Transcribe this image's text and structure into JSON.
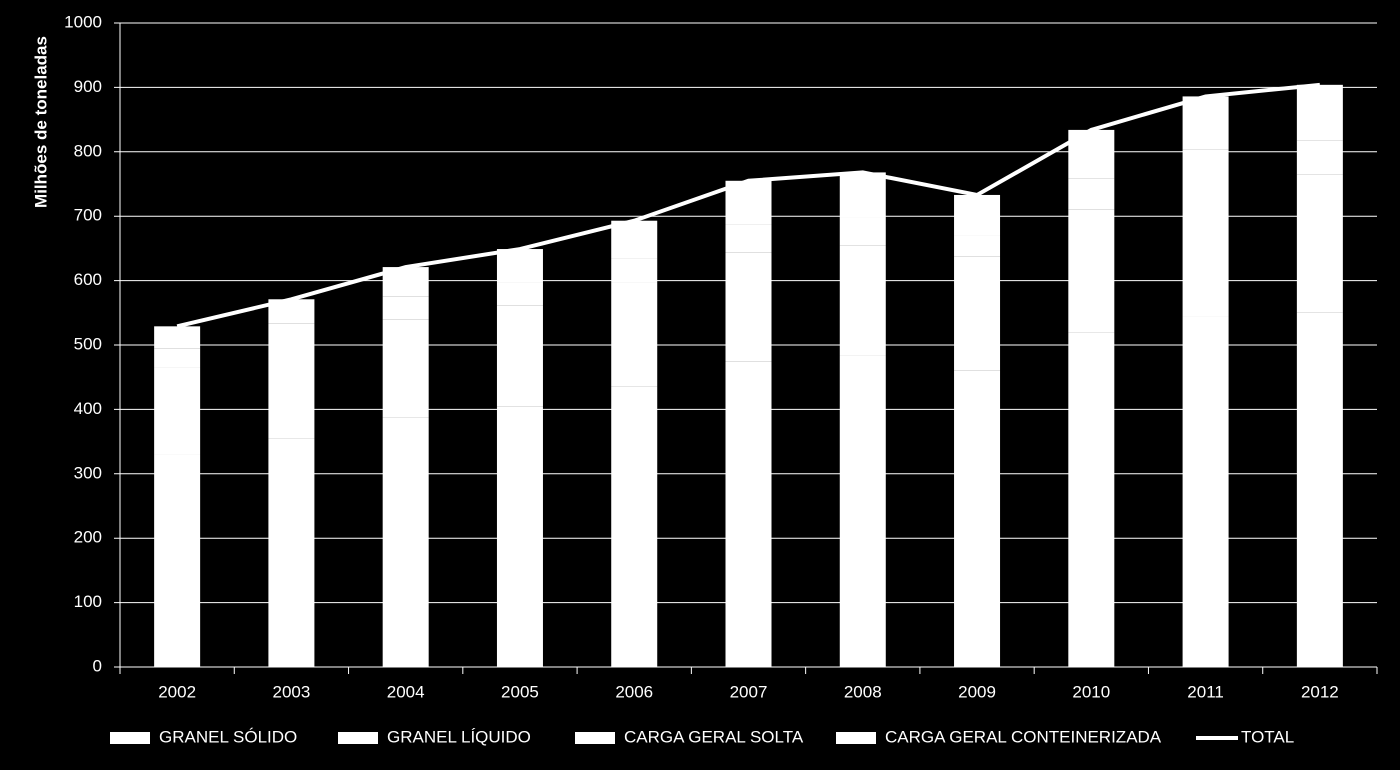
{
  "chart_data": {
    "type": "bar",
    "stacked": true,
    "y_label": "Milhões de toneladas",
    "categories": [
      "2002",
      "2003",
      "2004",
      "2005",
      "2006",
      "2007",
      "2008",
      "2009",
      "2010",
      "2011",
      "2012"
    ],
    "series": [
      {
        "name": "GRANEL SÓLIDO",
        "color": "#ffffff",
        "values": [
          330,
          355,
          388,
          405,
          435,
          474,
          483,
          460,
          520,
          545,
          551
        ]
      },
      {
        "name": "GRANEL LÍQUIDO",
        "color": "#ffffff",
        "values": [
          135,
          145,
          152,
          156,
          162,
          170,
          172,
          177,
          190,
          205,
          214
        ]
      },
      {
        "name": "CARGA GERAL SOLTA",
        "color": "#ffffff",
        "values": [
          30,
          33,
          35,
          36,
          38,
          43,
          43,
          33,
          48,
          53,
          52
        ]
      },
      {
        "name": "CARGA GERAL CONTEINERIZADA",
        "color": "#ffffff",
        "values": [
          34,
          38,
          46,
          52,
          58,
          68,
          70,
          63,
          76,
          83,
          87
        ]
      },
      {
        "name": "TOTAL",
        "type": "line",
        "color": "#ffffff",
        "values": [
          529,
          571,
          621,
          649,
          693,
          755,
          768,
          733,
          834,
          886,
          904
        ]
      }
    ],
    "ylim": [
      0,
      1000
    ],
    "yticks": [
      0,
      100,
      200,
      300,
      400,
      500,
      600,
      700,
      800,
      900,
      1000
    ],
    "grid": true,
    "legend": "bottom"
  }
}
